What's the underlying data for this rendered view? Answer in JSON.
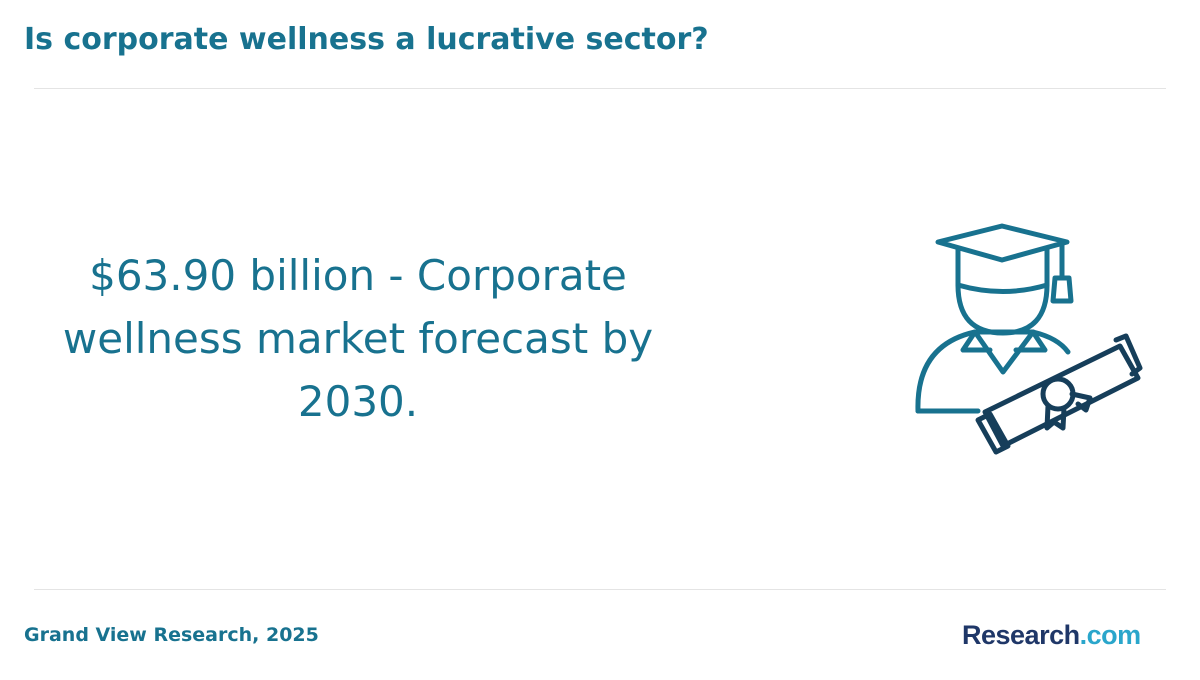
{
  "header": {
    "title": "Is corporate wellness a lucrative sector?"
  },
  "body": {
    "statement": "$63.90 billion - Corporate wellness market forecast by 2030."
  },
  "footer": {
    "source": "Grand View Research, 2025",
    "logo": {
      "name": "Research",
      "suffix": ".com"
    }
  }
}
